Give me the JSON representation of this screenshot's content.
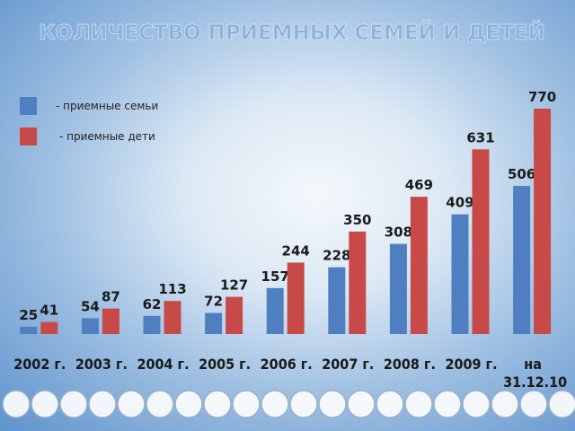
{
  "chart_data": {
    "type": "bar",
    "title": "КОЛИЧЕСТВО ПРИЕМНЫХ СЕМЕЙ И ДЕТЕЙ",
    "categories": [
      "2002 г.",
      "2003 г.",
      "2004 г.",
      "2005 г.",
      "2006 г.",
      "2007 г.",
      "2008 г.",
      "2009 г.",
      "на 31.12.10"
    ],
    "series": [
      {
        "name": "- приемные семьи",
        "color": "#4f7fc0",
        "values": [
          25,
          54,
          62,
          72,
          157,
          228,
          308,
          409,
          506
        ]
      },
      {
        "name": "- приемные дети",
        "color": "#c84a48",
        "values": [
          41,
          87,
          113,
          127,
          244,
          350,
          469,
          631,
          770
        ]
      }
    ]
  }
}
